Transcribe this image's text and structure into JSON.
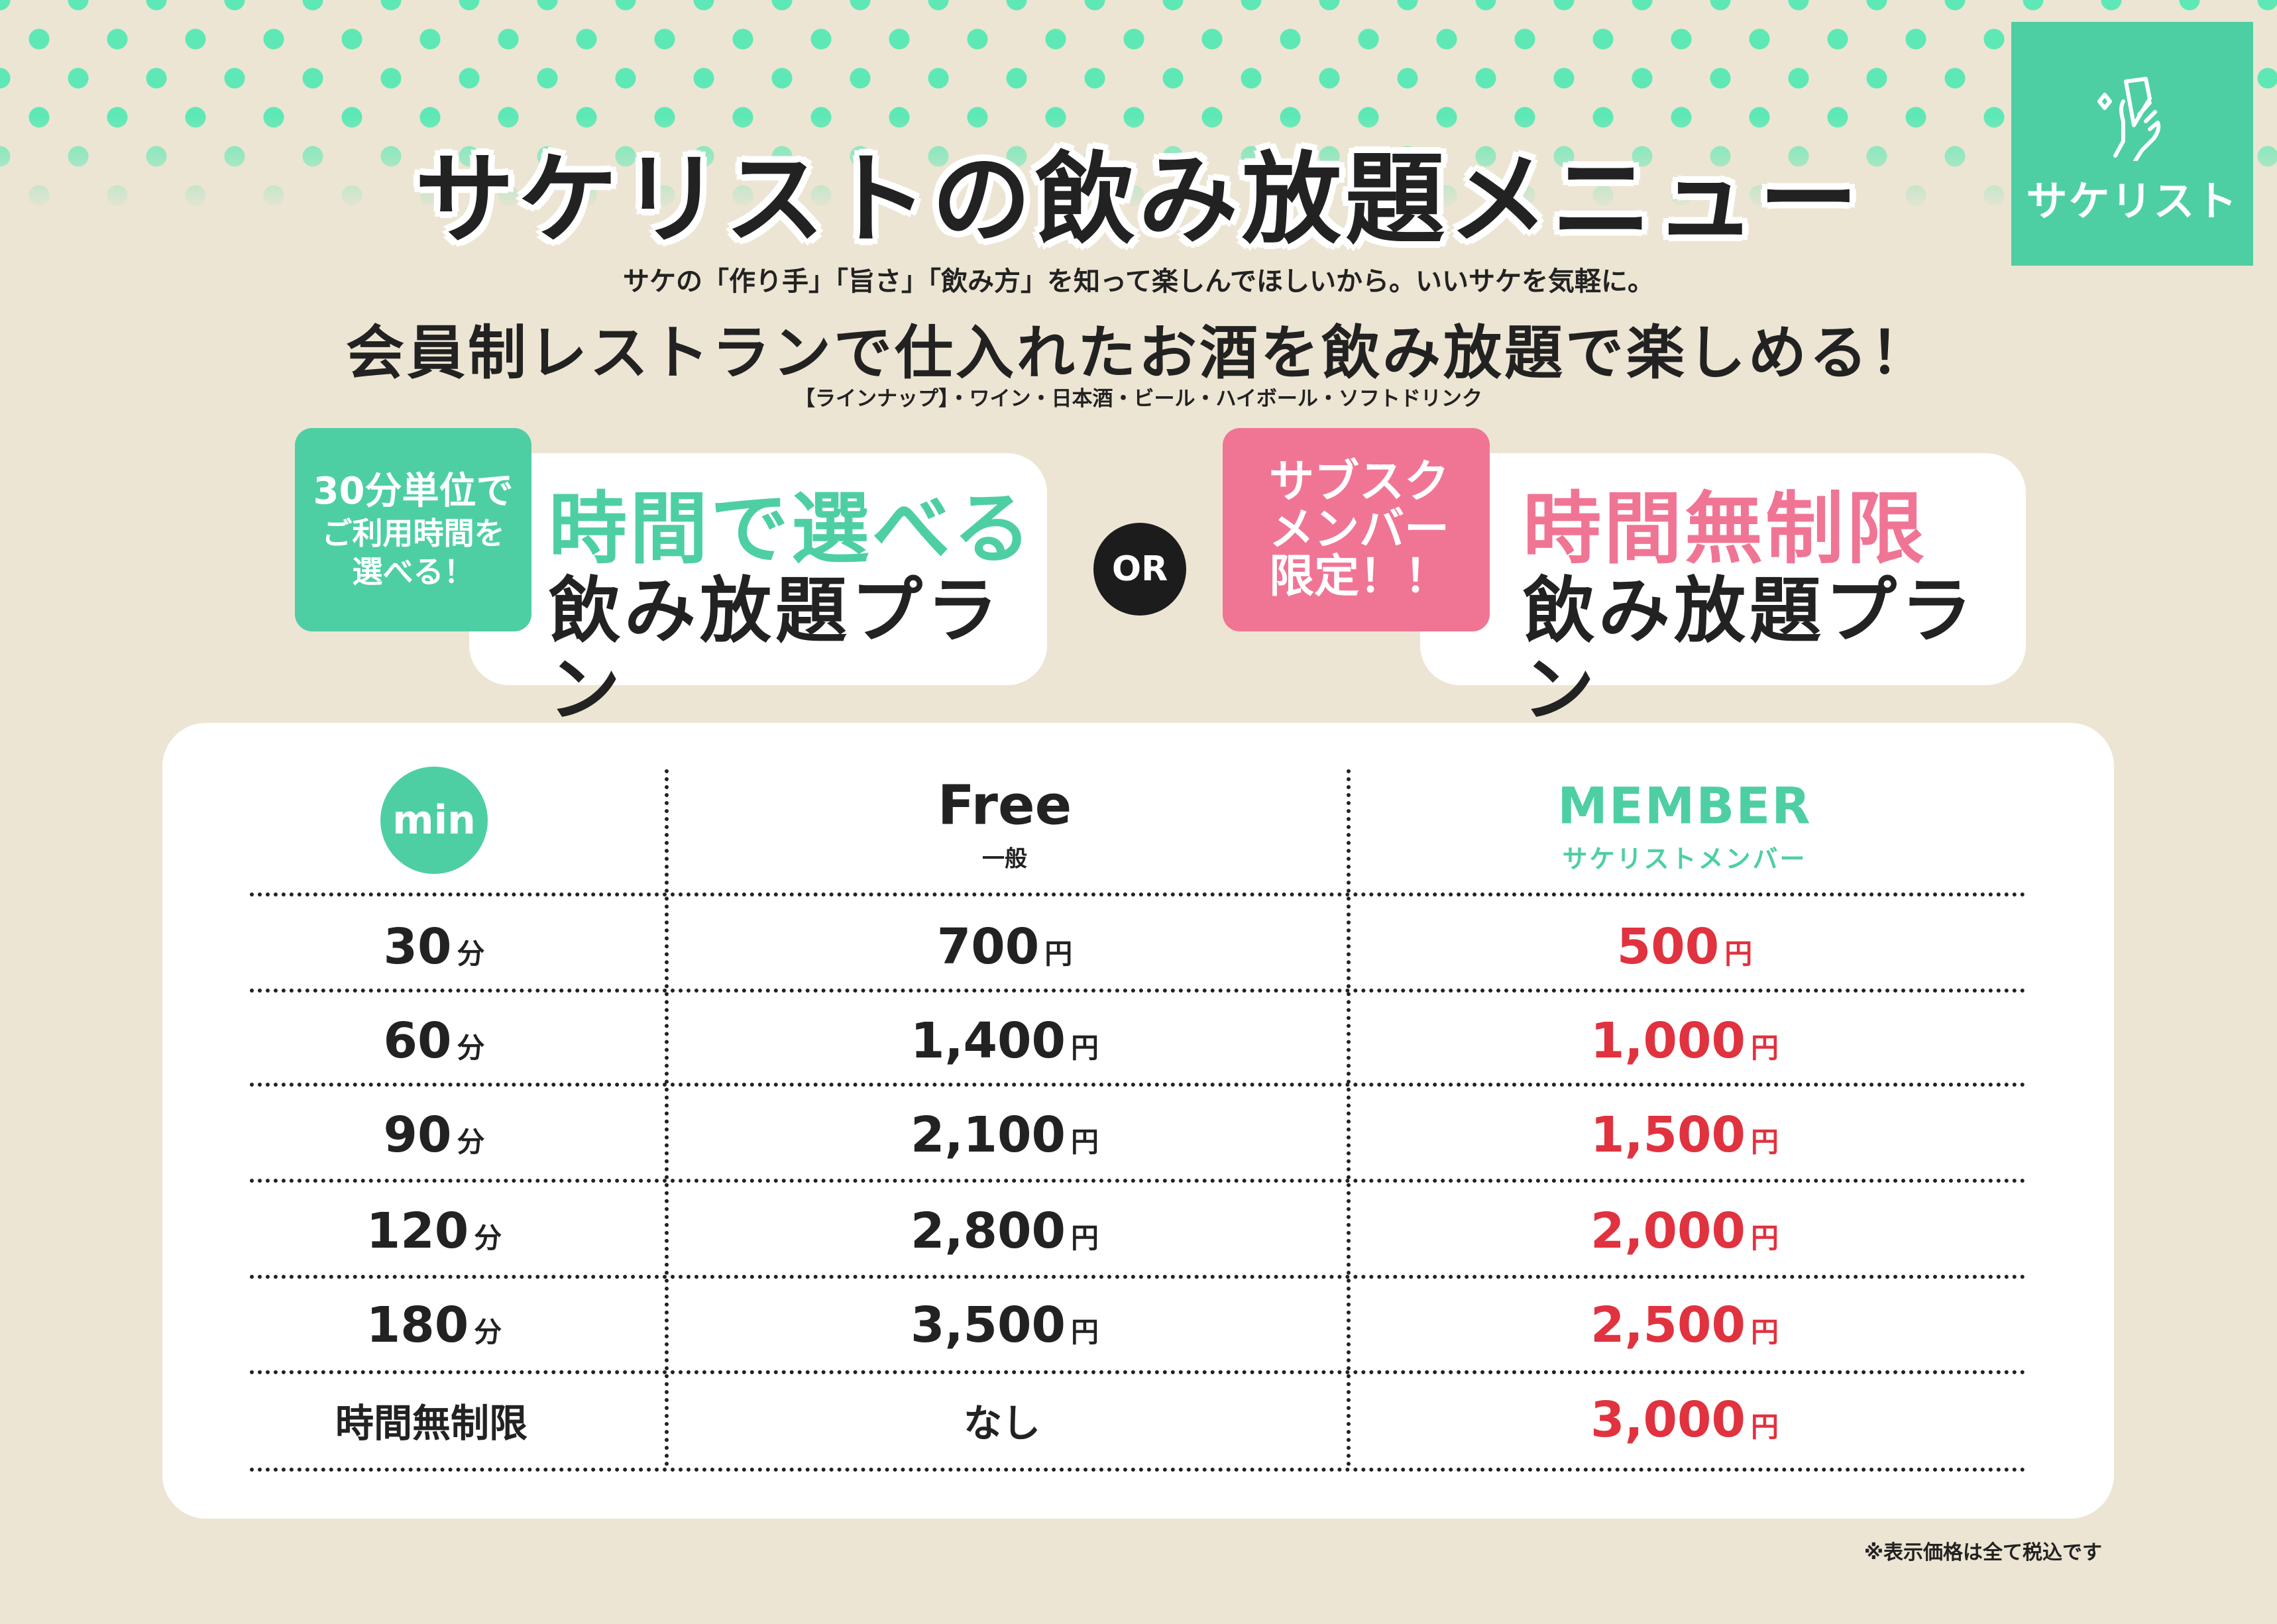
{
  "colors": {
    "background": "#ede5d3",
    "accent_green": "#4ecfa3",
    "dots": "#5ee8b5",
    "pink": "#f07594",
    "price_red": "#e0323f",
    "text": "#222222"
  },
  "header": {
    "title": "サケリストの飲み放題メニュー"
  },
  "logo": {
    "icon": "hand-holding-glass-icon",
    "name": "サケリスト"
  },
  "intro": {
    "line1": "サケの「作り手」「旨さ」「飲み方」を知って楽しんでほしいから。いいサケを気軽に。",
    "line2": "会員制レストランで仕入れたお酒を飲み放題で楽しめる！",
    "lineup": "【ラインナップ】・ワイン・日本酒・ビール・ハイボール・ソフトドリンク"
  },
  "plans": {
    "left": {
      "badge": [
        "30分単位で",
        "ご利用時間を",
        "選べる！"
      ],
      "title": "時間で選べる",
      "subtitle": "飲み放題プラン"
    },
    "or": "OR",
    "right": {
      "badge": [
        "サブスク",
        "メンバー",
        "限定！！"
      ],
      "title": "時間無制限",
      "subtitle": "飲み放題プラン"
    }
  },
  "table": {
    "headers": {
      "min": "min",
      "free": "Free",
      "free_sub": "一般",
      "member": "MEMBER",
      "member_sub": "サケリストメンバー"
    },
    "rows": [
      {
        "time": "30",
        "time_unit": "分",
        "free": "700",
        "free_unit": "円",
        "member": "500",
        "member_unit": "円"
      },
      {
        "time": "60",
        "time_unit": "分",
        "free": "1,400",
        "free_unit": "円",
        "member": "1,000",
        "member_unit": "円"
      },
      {
        "time": "90",
        "time_unit": "分",
        "free": "2,100",
        "free_unit": "円",
        "member": "1,500",
        "member_unit": "円"
      },
      {
        "time": "120",
        "time_unit": "分",
        "free": "2,800",
        "free_unit": "円",
        "member": "2,000",
        "member_unit": "円"
      },
      {
        "time": "180",
        "time_unit": "分",
        "free": "3,500",
        "free_unit": "円",
        "member": "2,500",
        "member_unit": "円"
      },
      {
        "time": "時間無制限",
        "time_unit": "",
        "free": "なし",
        "free_unit": "",
        "member": "3,000",
        "member_unit": "円"
      }
    ]
  },
  "footnote": "※表示価格は全て税込です"
}
